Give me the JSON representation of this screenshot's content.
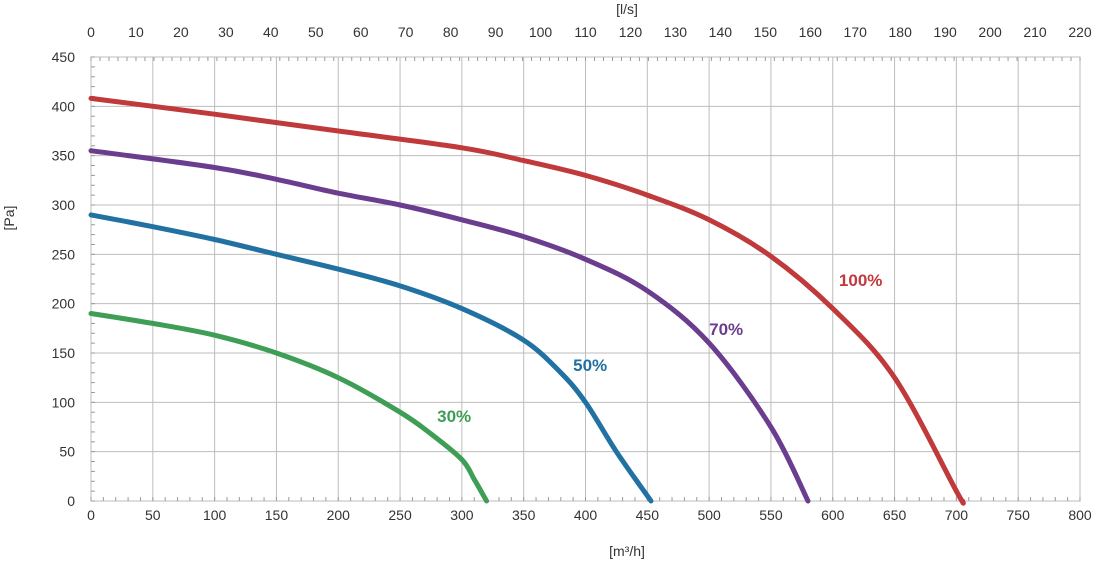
{
  "chart_data": {
    "type": "line",
    "xlabel": "[m³/h]",
    "x2label": "[l/s]",
    "ylabel": "[Pa]",
    "xlim": [
      0,
      800
    ],
    "x2lim": [
      0,
      220
    ],
    "ylim": [
      0,
      450
    ],
    "xticks": [
      "0",
      "50",
      "100",
      "150",
      "200",
      "250",
      "300",
      "350",
      "400",
      "450",
      "500",
      "550",
      "600",
      "650",
      "700",
      "750",
      "800"
    ],
    "x2ticks": [
      "0",
      "10",
      "20",
      "30",
      "40",
      "50",
      "60",
      "70",
      "80",
      "90",
      "100",
      "110",
      "120",
      "130",
      "140",
      "150",
      "160",
      "170",
      "180",
      "190",
      "200",
      "210",
      "220"
    ],
    "yticks": [
      "0",
      "50",
      "100",
      "150",
      "200",
      "250",
      "300",
      "350",
      "400",
      "450"
    ],
    "grid": true,
    "series": [
      {
        "name": "100%",
        "color": "#c0393b",
        "points": [
          [
            0,
            408
          ],
          [
            100,
            392
          ],
          [
            200,
            375
          ],
          [
            300,
            358
          ],
          [
            350,
            345
          ],
          [
            400,
            330
          ],
          [
            450,
            310
          ],
          [
            500,
            285
          ],
          [
            550,
            248
          ],
          [
            600,
            195
          ],
          [
            650,
            125
          ],
          [
            700,
            10
          ],
          [
            705,
            0
          ]
        ]
      },
      {
        "name": "70%",
        "color": "#6a3d8f",
        "points": [
          [
            0,
            355
          ],
          [
            100,
            338
          ],
          [
            150,
            326
          ],
          [
            200,
            312
          ],
          [
            250,
            300
          ],
          [
            300,
            285
          ],
          [
            350,
            268
          ],
          [
            400,
            245
          ],
          [
            450,
            213
          ],
          [
            500,
            160
          ],
          [
            550,
            75
          ],
          [
            580,
            0
          ]
        ]
      },
      {
        "name": "50%",
        "color": "#2271a3",
        "points": [
          [
            0,
            290
          ],
          [
            50,
            278
          ],
          [
            100,
            265
          ],
          [
            150,
            250
          ],
          [
            200,
            235
          ],
          [
            250,
            218
          ],
          [
            300,
            195
          ],
          [
            350,
            163
          ],
          [
            380,
            130
          ],
          [
            400,
            100
          ],
          [
            425,
            50
          ],
          [
            453,
            0
          ]
        ]
      },
      {
        "name": "30%",
        "color": "#3f9e55",
        "points": [
          [
            0,
            190
          ],
          [
            50,
            180
          ],
          [
            100,
            168
          ],
          [
            150,
            150
          ],
          [
            200,
            125
          ],
          [
            250,
            90
          ],
          [
            275,
            68
          ],
          [
            300,
            42
          ],
          [
            310,
            22
          ],
          [
            320,
            0
          ]
        ]
      }
    ]
  }
}
